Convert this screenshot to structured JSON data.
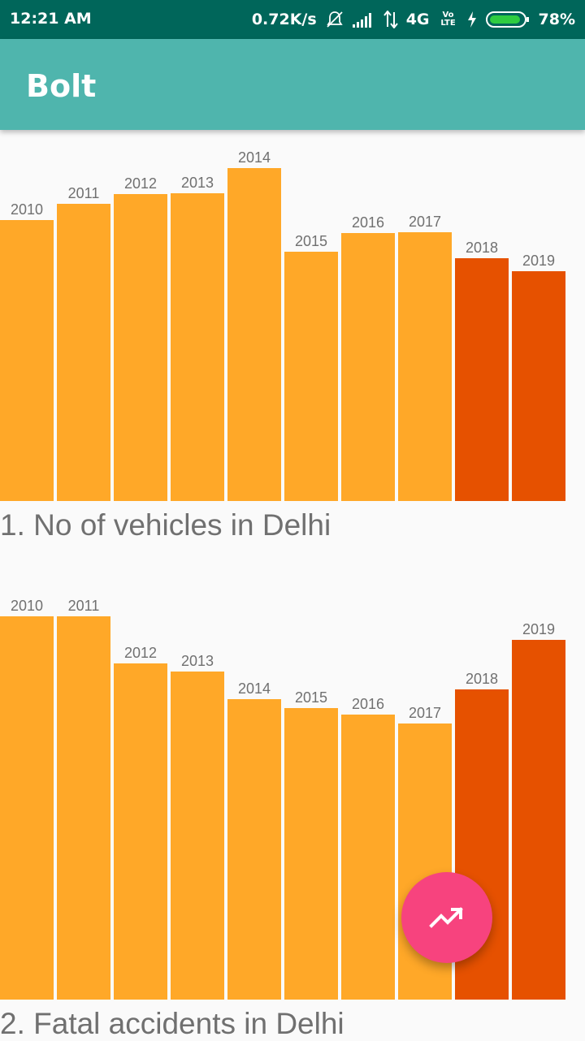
{
  "status_bar": {
    "time": "12:21 AM",
    "speed": "0.72K/s",
    "network": "4G",
    "volte": "Vo LTE",
    "battery": "78%",
    "icons": [
      "mute-icon",
      "signal-icon",
      "data-arrows-icon",
      "volte-icon",
      "charging-icon",
      "battery-icon"
    ]
  },
  "app_bar": {
    "title": "Bolt"
  },
  "colors": {
    "status_bar": "#00665a",
    "app_bar": "#4fb5ad",
    "bar_normal": "#ffa828",
    "bar_highlight": "#e65100",
    "label_text": "#707070",
    "fab": "#f7437e",
    "background": "#fafafa"
  },
  "fab": {
    "icon": "trending-up-icon"
  },
  "chart_data": [
    {
      "type": "bar",
      "title": "1. No of vehicles in Delhi",
      "categories": [
        "2010",
        "2011",
        "2012",
        "2013",
        "2014",
        "2015",
        "2016",
        "2017",
        "2018",
        "2019"
      ],
      "values": [
        346,
        366,
        378,
        379,
        410,
        307,
        330,
        331,
        299,
        283
      ],
      "highlighted": [
        false,
        false,
        false,
        false,
        false,
        false,
        false,
        false,
        true,
        true
      ],
      "ylim": [
        0,
        410
      ],
      "grid": false,
      "legend": false
    },
    {
      "type": "bar",
      "title": "2. Fatal accidents in Delhi",
      "categories": [
        "2010",
        "2011",
        "2012",
        "2013",
        "2014",
        "2015",
        "2016",
        "2017",
        "2018",
        "2019"
      ],
      "values": [
        472,
        472,
        414,
        404,
        370,
        359,
        351,
        340,
        382,
        443
      ],
      "highlighted": [
        false,
        false,
        false,
        false,
        false,
        false,
        false,
        false,
        true,
        true
      ],
      "ylim": [
        0,
        472
      ],
      "grid": false,
      "legend": false
    }
  ]
}
